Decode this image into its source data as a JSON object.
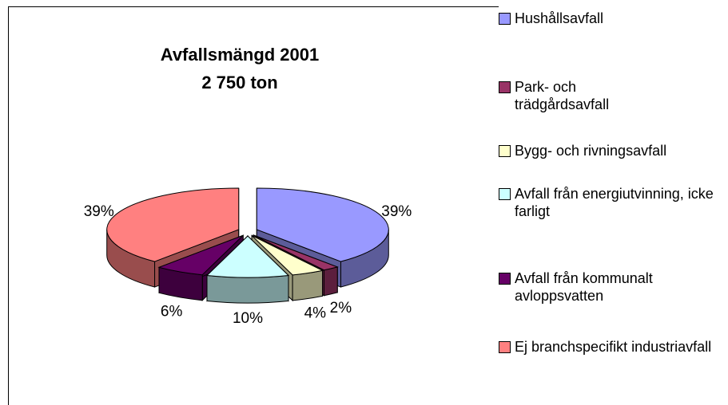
{
  "chart_data": {
    "type": "pie",
    "title": "Avfallsmängd 2001",
    "subtitle": "2 750 ton",
    "categories": [
      "Hushållsavfall",
      "Park- och trädgårdsavfall",
      "Bygg- och rivningsavfall",
      "Avfall från energiutvinning, icke farligt",
      "Avfall från kommunalt avloppsvatten",
      "Ej branchspecifikt industriavfall"
    ],
    "values": [
      39,
      2,
      4,
      10,
      6,
      39
    ],
    "value_labels": [
      "39%",
      "2%",
      "4%",
      "10%",
      "6%",
      "39%"
    ],
    "colors": [
      "#9999ff",
      "#993366",
      "#ffffcc",
      "#ccffff",
      "#660066",
      "#ff8080"
    ],
    "legend": "right"
  }
}
